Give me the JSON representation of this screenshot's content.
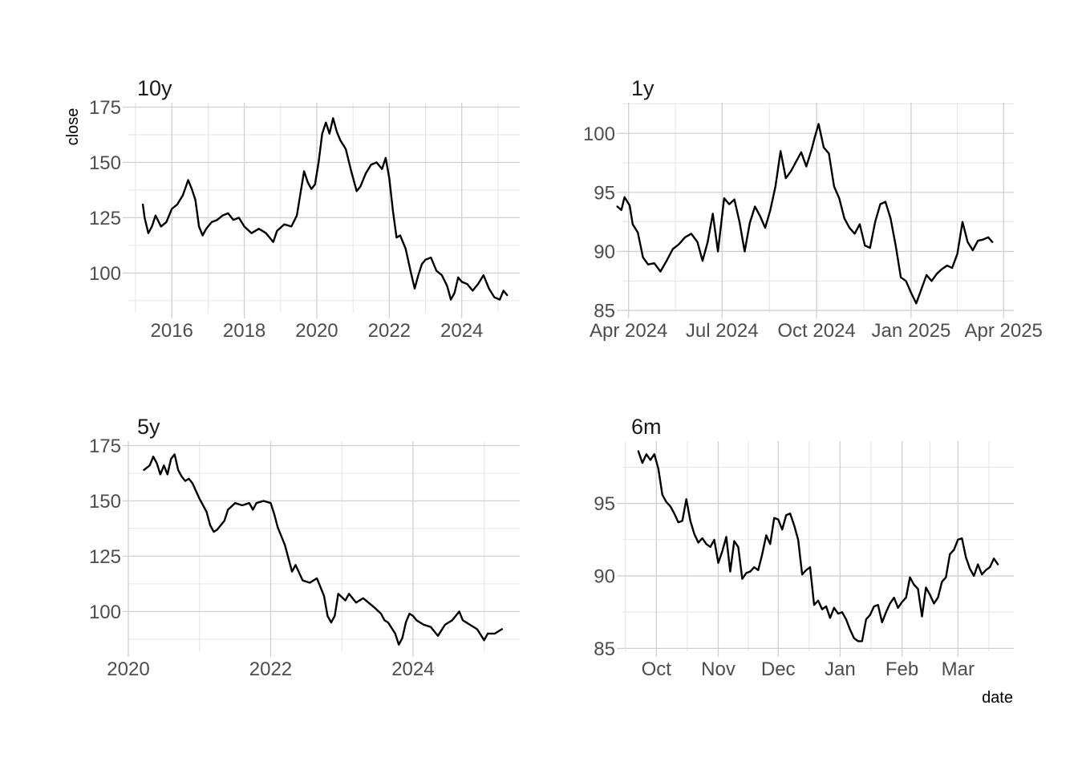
{
  "chart_data": [
    {
      "type": "line",
      "title": "10y",
      "xlabel": "",
      "ylabel": "close",
      "x_type": "year",
      "xlim": [
        2014.8,
        2025.6
      ],
      "ylim": [
        82,
        177
      ],
      "x_ticks": [
        2016,
        2018,
        2020,
        2022,
        2024
      ],
      "x_tick_labels": [
        "2016",
        "2018",
        "2020",
        "2022",
        "2024"
      ],
      "y_ticks": [
        100,
        125,
        150,
        175
      ],
      "y_tick_labels": [
        "100",
        "125",
        "150",
        "175"
      ],
      "grid": true,
      "x": [
        2015.2,
        2015.25,
        2015.35,
        2015.45,
        2015.55,
        2015.7,
        2015.85,
        2016.0,
        2016.15,
        2016.3,
        2016.45,
        2016.55,
        2016.65,
        2016.75,
        2016.85,
        2016.95,
        2017.1,
        2017.25,
        2017.4,
        2017.55,
        2017.7,
        2017.85,
        2018.0,
        2018.2,
        2018.4,
        2018.6,
        2018.8,
        2018.9,
        2019.1,
        2019.3,
        2019.45,
        2019.55,
        2019.65,
        2019.75,
        2019.85,
        2019.95,
        2020.05,
        2020.15,
        2020.25,
        2020.35,
        2020.45,
        2020.55,
        2020.65,
        2020.8,
        2020.95,
        2021.1,
        2021.2,
        2021.35,
        2021.5,
        2021.65,
        2021.8,
        2021.9,
        2022.0,
        2022.1,
        2022.2,
        2022.3,
        2022.45,
        2022.6,
        2022.7,
        2022.8,
        2022.9,
        2023.0,
        2023.15,
        2023.3,
        2023.45,
        2023.6,
        2023.7,
        2023.8,
        2023.9,
        2024.0,
        2024.15,
        2024.3,
        2024.45,
        2024.6,
        2024.75,
        2024.9,
        2025.05,
        2025.15,
        2025.25
      ],
      "y": [
        131,
        125,
        118,
        121,
        126,
        121,
        123,
        129,
        131,
        135,
        142,
        138,
        133,
        121,
        117,
        120,
        123,
        124,
        126,
        127,
        124,
        125,
        121,
        118,
        120,
        118,
        114,
        119,
        122,
        121,
        126,
        136,
        146,
        141,
        138,
        140,
        150,
        163,
        168,
        163,
        170,
        164,
        160,
        156,
        146,
        137,
        139,
        145,
        149,
        150,
        147,
        152,
        143,
        128,
        116,
        117,
        111,
        100,
        93,
        99,
        104,
        106,
        107,
        101,
        99,
        94,
        88,
        91,
        98,
        96,
        95,
        92,
        95,
        99,
        93,
        89,
        88,
        92,
        90
      ]
    },
    {
      "type": "line",
      "title": "1y",
      "xlabel": "",
      "ylabel": "",
      "x_type": "date",
      "xlim": [
        "2024-03-26",
        "2025-04-11"
      ],
      "ylim": [
        84.8,
        102.6
      ],
      "x_ticks": [
        "2024-04-01",
        "2024-07-01",
        "2024-10-01",
        "2025-01-01",
        "2025-04-01"
      ],
      "x_tick_labels": [
        "Apr 2024",
        "Jul 2024",
        "Oct 2024",
        "Jan 2025",
        "Apr 2025"
      ],
      "y_ticks": [
        85,
        90,
        95,
        100
      ],
      "y_tick_labels": [
        "85",
        "90",
        "95",
        "100"
      ],
      "grid": true,
      "x": [
        "2024-03-21",
        "2024-03-25",
        "2024-03-28",
        "2024-04-02",
        "2024-04-05",
        "2024-04-10",
        "2024-04-15",
        "2024-04-20",
        "2024-04-26",
        "2024-05-02",
        "2024-05-08",
        "2024-05-14",
        "2024-05-20",
        "2024-05-26",
        "2024-06-01",
        "2024-06-07",
        "2024-06-12",
        "2024-06-17",
        "2024-06-22",
        "2024-06-27",
        "2024-07-03",
        "2024-07-08",
        "2024-07-13",
        "2024-07-18",
        "2024-07-23",
        "2024-07-28",
        "2024-08-02",
        "2024-08-07",
        "2024-08-12",
        "2024-08-17",
        "2024-08-22",
        "2024-08-27",
        "2024-09-01",
        "2024-09-06",
        "2024-09-11",
        "2024-09-16",
        "2024-09-21",
        "2024-09-26",
        "2024-09-29",
        "2024-10-03",
        "2024-10-08",
        "2024-10-13",
        "2024-10-18",
        "2024-10-23",
        "2024-10-28",
        "2024-11-02",
        "2024-11-07",
        "2024-11-12",
        "2024-11-17",
        "2024-11-22",
        "2024-11-27",
        "2024-12-02",
        "2024-12-07",
        "2024-12-12",
        "2024-12-17",
        "2024-12-22",
        "2024-12-27",
        "2025-01-01",
        "2025-01-06",
        "2025-01-11",
        "2025-01-16",
        "2025-01-21",
        "2025-01-26",
        "2025-01-31",
        "2025-02-05",
        "2025-02-10",
        "2025-02-15",
        "2025-02-20",
        "2025-02-25",
        "2025-03-02",
        "2025-03-07",
        "2025-03-12",
        "2025-03-17",
        "2025-03-21"
      ],
      "y": [
        93.8,
        93.5,
        94.6,
        93.9,
        92.3,
        91.6,
        89.5,
        88.9,
        89.0,
        88.3,
        89.2,
        90.2,
        90.6,
        91.2,
        91.5,
        90.8,
        89.2,
        90.8,
        93.2,
        90.0,
        94.5,
        94.0,
        94.4,
        92.5,
        90.0,
        92.4,
        93.8,
        93.0,
        92.0,
        93.5,
        95.5,
        98.5,
        96.2,
        96.8,
        97.6,
        98.4,
        97.2,
        98.6,
        99.6,
        100.8,
        98.8,
        98.3,
        95.5,
        94.5,
        92.8,
        92.0,
        91.5,
        92.3,
        90.5,
        90.3,
        92.5,
        94.0,
        94.2,
        92.8,
        90.5,
        87.8,
        87.5,
        86.5,
        85.6,
        86.8,
        88.0,
        87.5,
        88.1,
        88.5,
        88.8,
        88.6,
        89.8,
        92.5,
        90.8,
        90.1,
        90.9,
        91.0,
        91.2,
        90.8
      ]
    },
    {
      "type": "line",
      "title": "5y",
      "xlabel": "",
      "ylabel": "",
      "x_type": "year",
      "xlim": [
        2020.0,
        2025.5
      ],
      "ylim": [
        82,
        177
      ],
      "x_ticks": [
        2020,
        2022,
        2024
      ],
      "x_tick_labels": [
        "2020",
        "2022",
        "2024"
      ],
      "y_ticks": [
        100,
        125,
        150,
        175
      ],
      "y_tick_labels": [
        "100",
        "125",
        "150",
        "175"
      ],
      "grid": true,
      "x": [
        2020.22,
        2020.3,
        2020.35,
        2020.4,
        2020.45,
        2020.5,
        2020.55,
        2020.6,
        2020.65,
        2020.7,
        2020.75,
        2020.8,
        2020.85,
        2020.9,
        2021.0,
        2021.1,
        2021.15,
        2021.2,
        2021.25,
        2021.3,
        2021.35,
        2021.4,
        2021.5,
        2021.6,
        2021.7,
        2021.75,
        2021.8,
        2021.9,
        2022.0,
        2022.05,
        2022.1,
        2022.2,
        2022.3,
        2022.35,
        2022.45,
        2022.55,
        2022.65,
        2022.75,
        2022.8,
        2022.85,
        2022.9,
        2022.95,
        2023.05,
        2023.1,
        2023.2,
        2023.3,
        2023.45,
        2023.55,
        2023.6,
        2023.65,
        2023.75,
        2023.8,
        2023.85,
        2023.9,
        2023.95,
        2024.0,
        2024.05,
        2024.15,
        2024.25,
        2024.35,
        2024.45,
        2024.55,
        2024.65,
        2024.7,
        2024.8,
        2024.9,
        2025.0,
        2025.05,
        2025.15,
        2025.25
      ],
      "y": [
        164,
        166,
        170,
        167,
        162,
        166,
        162,
        169,
        171,
        164,
        161,
        159,
        160,
        158,
        151,
        145,
        139,
        136,
        137,
        139,
        141,
        146,
        149,
        148,
        149,
        146,
        149,
        150,
        149,
        144,
        138,
        130,
        118,
        121,
        114,
        113,
        115,
        107,
        98,
        95,
        98,
        108,
        105,
        108,
        104,
        106,
        102,
        99,
        96,
        95,
        90,
        85,
        88,
        95,
        99,
        98,
        96,
        94,
        93,
        89,
        94,
        96,
        100,
        96,
        94,
        92,
        87,
        90,
        90,
        92
      ]
    },
    {
      "type": "line",
      "title": "6m",
      "xlabel": "date",
      "ylabel": "",
      "x_type": "date",
      "xlim": [
        "2024-09-14",
        "2025-03-29"
      ],
      "ylim": [
        84.8,
        99.3
      ],
      "x_ticks": [
        "2024-10-01",
        "2024-11-01",
        "2024-12-01",
        "2025-01-01",
        "2025-02-01",
        "2025-03-01"
      ],
      "x_tick_labels": [
        "Oct",
        "Nov",
        "Dec",
        "Jan",
        "Feb",
        "Mar"
      ],
      "y_ticks": [
        85,
        90,
        95
      ],
      "y_tick_labels": [
        "85",
        "90",
        "95"
      ],
      "grid": true,
      "x": [
        "2024-09-22",
        "2024-09-24",
        "2024-09-26",
        "2024-09-28",
        "2024-09-30",
        "2024-10-02",
        "2024-10-04",
        "2024-10-06",
        "2024-10-08",
        "2024-10-10",
        "2024-10-12",
        "2024-10-14",
        "2024-10-16",
        "2024-10-18",
        "2024-10-20",
        "2024-10-22",
        "2024-10-24",
        "2024-10-26",
        "2024-10-28",
        "2024-10-30",
        "2024-11-01",
        "2024-11-03",
        "2024-11-05",
        "2024-11-07",
        "2024-11-09",
        "2024-11-11",
        "2024-11-13",
        "2024-11-15",
        "2024-11-17",
        "2024-11-19",
        "2024-11-21",
        "2024-11-23",
        "2024-11-25",
        "2024-11-27",
        "2024-11-29",
        "2024-12-01",
        "2024-12-03",
        "2024-12-05",
        "2024-12-07",
        "2024-12-09",
        "2024-12-11",
        "2024-12-13",
        "2024-12-15",
        "2024-12-17",
        "2024-12-19",
        "2024-12-21",
        "2024-12-23",
        "2024-12-25",
        "2024-12-27",
        "2024-12-29",
        "2024-12-31",
        "2025-01-02",
        "2025-01-04",
        "2025-01-06",
        "2025-01-08",
        "2025-01-10",
        "2025-01-12",
        "2025-01-14",
        "2025-01-16",
        "2025-01-18",
        "2025-01-20",
        "2025-01-22",
        "2025-01-24",
        "2025-01-26",
        "2025-01-28",
        "2025-01-30",
        "2025-02-01",
        "2025-02-03",
        "2025-02-05",
        "2025-02-07",
        "2025-02-09",
        "2025-02-11",
        "2025-02-13",
        "2025-02-15",
        "2025-02-17",
        "2025-02-19",
        "2025-02-21",
        "2025-02-23",
        "2025-02-25",
        "2025-02-27",
        "2025-03-01",
        "2025-03-03",
        "2025-03-05",
        "2025-03-07",
        "2025-03-09",
        "2025-03-11",
        "2025-03-13",
        "2025-03-15",
        "2025-03-17",
        "2025-03-19",
        "2025-03-21"
      ],
      "y": [
        98.6,
        97.8,
        98.4,
        98.0,
        98.4,
        97.4,
        95.6,
        95.1,
        94.8,
        94.3,
        93.7,
        93.8,
        95.3,
        93.8,
        92.9,
        92.3,
        92.6,
        92.2,
        92.0,
        92.5,
        90.9,
        91.7,
        92.7,
        90.3,
        92.4,
        92.0,
        89.8,
        90.2,
        90.3,
        90.6,
        90.4,
        91.5,
        92.8,
        92.2,
        94.0,
        93.9,
        93.2,
        94.2,
        94.3,
        93.5,
        92.5,
        90.1,
        90.4,
        90.6,
        88.0,
        88.3,
        87.7,
        87.9,
        87.1,
        87.8,
        87.4,
        87.5,
        87.0,
        86.3,
        85.7,
        85.5,
        85.5,
        87.0,
        87.3,
        87.9,
        88.0,
        86.8,
        87.5,
        88.1,
        88.5,
        87.8,
        88.2,
        88.5,
        89.9,
        89.4,
        89.1,
        87.2,
        89.2,
        88.7,
        88.1,
        88.5,
        89.6,
        89.9,
        91.5,
        91.8,
        92.5,
        92.6,
        91.3,
        90.5,
        90.0,
        90.8,
        90.1,
        90.4,
        90.6,
        91.2,
        90.8
      ]
    }
  ]
}
